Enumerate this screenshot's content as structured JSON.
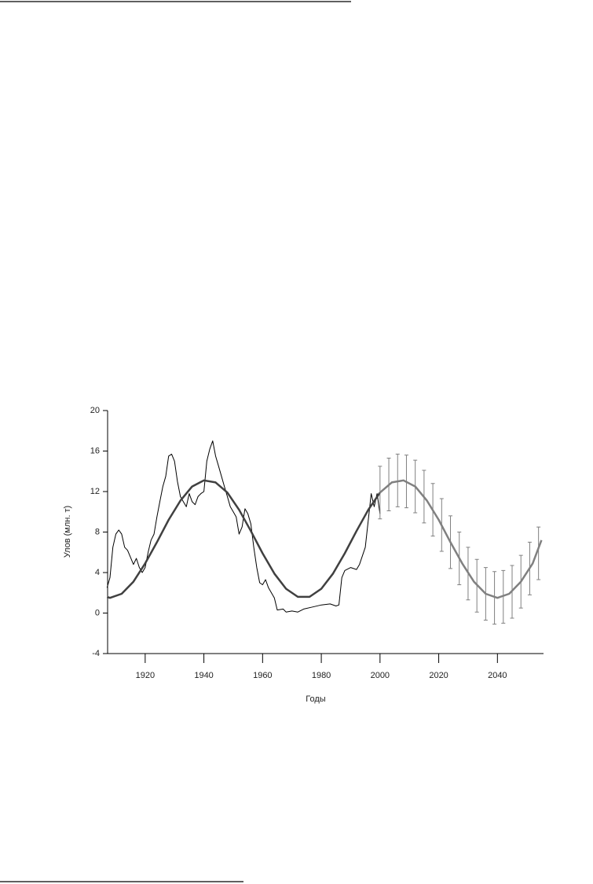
{
  "chart_data": {
    "type": "line",
    "xlabel": "Годы",
    "ylabel": "Улов (млн. т)",
    "xlim": [
      1907.2,
      2055.7
    ],
    "ylim": [
      -4,
      20
    ],
    "xticks": [
      1920,
      1940,
      1960,
      1980,
      2000,
      2020,
      2040
    ],
    "yticks": [
      -4,
      0,
      4,
      8,
      12,
      16,
      20
    ],
    "series": [
      {
        "color": "#000000",
        "x": [
          1907,
          1908,
          1909,
          1910,
          1911,
          1912,
          1913,
          1914,
          1915,
          1916,
          1917,
          1918,
          1919,
          1920,
          1921,
          1922,
          1923,
          1924,
          1925,
          1926,
          1927,
          1928,
          1929,
          1930,
          1931,
          1932,
          1933,
          1934,
          1935,
          1936,
          1937,
          1938,
          1939,
          1940,
          1941,
          1942,
          1943,
          1944,
          1945,
          1946,
          1947,
          1948,
          1949,
          1950,
          1951,
          1952,
          1953,
          1954,
          1955,
          1956,
          1957,
          1958,
          1959,
          1960,
          1961,
          1962,
          1964,
          1965,
          1967,
          1968,
          1970,
          1972,
          1974,
          1977,
          1980,
          1983,
          1985,
          1986,
          1987,
          1988,
          1990,
          1992,
          1993,
          1995,
          1997,
          1998,
          1999,
          2000
        ],
        "values": [
          2.5,
          3.5,
          6.5,
          7.8,
          8.2,
          7.8,
          6.5,
          6.2,
          5.5,
          4.8,
          5.4,
          4.5,
          4.0,
          4.5,
          6.0,
          7.2,
          7.8,
          9.5,
          11.0,
          12.5,
          13.5,
          15.5,
          15.7,
          15.0,
          13.0,
          11.5,
          11.0,
          10.5,
          11.8,
          11.0,
          10.7,
          11.5,
          11.8,
          12.0,
          15.0,
          16.2,
          17.0,
          15.5,
          14.5,
          13.5,
          12.5,
          11.5,
          10.5,
          10.0,
          9.5,
          7.8,
          8.5,
          10.3,
          9.8,
          8.8,
          6.5,
          4.5,
          3.0,
          2.8,
          3.3,
          2.5,
          1.5,
          0.3,
          0.4,
          0.1,
          0.2,
          0.1,
          0.4,
          0.6,
          0.8,
          0.9,
          0.7,
          0.8,
          3.5,
          4.2,
          4.5,
          4.3,
          4.8,
          6.5,
          11.8,
          10.5,
          11.8,
          9.8
        ],
        "width": 1
      },
      {
        "color": "#404040",
        "x": [
          1907,
          1908,
          1912,
          1916,
          1920,
          1924,
          1928,
          1932,
          1936,
          1940,
          1944,
          1948,
          1952,
          1956,
          1960,
          1964,
          1968,
          1972,
          1976,
          1980,
          1984,
          1988,
          1992,
          1996,
          2000
        ],
        "values": [
          1.6,
          1.5,
          1.9,
          3.1,
          4.9,
          7.0,
          9.2,
          11.1,
          12.5,
          13.1,
          12.9,
          11.9,
          10.2,
          8.1,
          5.9,
          3.9,
          2.4,
          1.6,
          1.6,
          2.4,
          3.9,
          5.9,
          8.1,
          10.2,
          11.9
        ],
        "width": 2.5
      },
      {
        "color": "#808080",
        "x": [
          2000,
          2004,
          2008,
          2012,
          2016,
          2020,
          2024,
          2028,
          2032,
          2036,
          2040,
          2044,
          2048,
          2052,
          2055
        ],
        "values": [
          11.9,
          12.9,
          13.1,
          12.5,
          11.1,
          9.2,
          7.0,
          4.9,
          3.1,
          1.9,
          1.5,
          1.9,
          3.1,
          4.9,
          7.2
        ],
        "width": 2.5
      }
    ],
    "error_bars": {
      "color": "#808080",
      "x": [
        2000,
        2003,
        2006,
        2009,
        2012,
        2015,
        2018,
        2021,
        2024,
        2027,
        2030,
        2033,
        2036,
        2039,
        2042,
        2045,
        2048,
        2051,
        2054
      ],
      "values": [
        11.9,
        12.7,
        13.1,
        13.0,
        12.5,
        11.5,
        10.2,
        8.7,
        7.0,
        5.4,
        3.9,
        2.7,
        1.9,
        1.5,
        1.6,
        2.1,
        3.1,
        4.4,
        5.9
      ],
      "errors": [
        2.6,
        2.6,
        2.6,
        2.6,
        2.6,
        2.6,
        2.6,
        2.6,
        2.6,
        2.6,
        2.6,
        2.6,
        2.6,
        2.6,
        2.6,
        2.6,
        2.6,
        2.6,
        2.6
      ]
    }
  }
}
